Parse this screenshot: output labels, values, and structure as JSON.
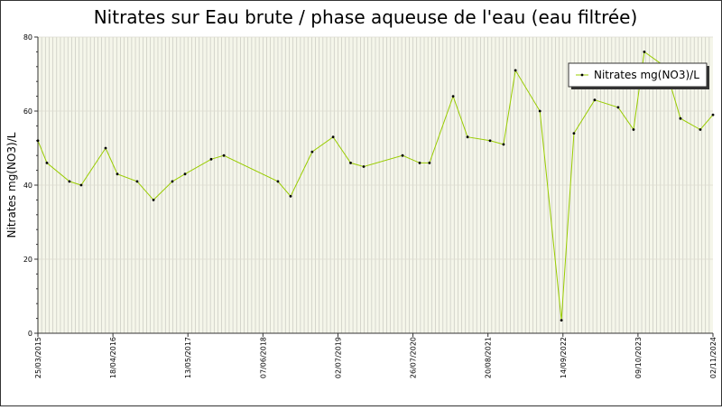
{
  "chart_data": {
    "type": "line",
    "title": "Nitrates sur Eau brute / phase aqueuse de l'eau (eau filtrée)",
    "y_label": "Nitrates mg(NO3)/L",
    "x": [
      "25/03/2015",
      "11/05/2015",
      "05/09/2015",
      "05/11/2015",
      "11/03/2016",
      "11/05/2016",
      "22/08/2016",
      "15/11/2016",
      "21/02/2017",
      "28/04/2017",
      "11/09/2017",
      "16/11/2017",
      "24/08/2018",
      "29/10/2018",
      "18/02/2019",
      "07/06/2019",
      "06/09/2019",
      "13/11/2019",
      "02/06/2020",
      "30/08/2020",
      "20/10/2020",
      "20/02/2021",
      "06/05/2021",
      "31/08/2021",
      "09/11/2021",
      "10/01/2022",
      "17/05/2022",
      "06/09/2022",
      "10/11/2022",
      "26/02/2023",
      "28/06/2023",
      "16/09/2023",
      "11/11/2023",
      "27/02/2024",
      "17/05/2024",
      "28/08/2024",
      "02/11/2024"
    ],
    "series": [
      {
        "name": "Nitrates mg(NO3)/L",
        "color": "#99cc00",
        "values": [
          52,
          46,
          41,
          40,
          50,
          43,
          41,
          36,
          41,
          43,
          47,
          48,
          41,
          37,
          49,
          53,
          46,
          45,
          48,
          46,
          46,
          64,
          53,
          52,
          51,
          71,
          60,
          3.5,
          54,
          63,
          61,
          55,
          76,
          72,
          58,
          55,
          59
        ]
      }
    ],
    "xlim": [
      "25/03/2015",
      "02/11/2024"
    ],
    "xticks": [
      "25/03/2015",
      "18/04/2016",
      "13/05/2017",
      "07/06/2018",
      "02/07/2019",
      "26/07/2020",
      "20/08/2021",
      "14/09/2022",
      "09/10/2023",
      "02/11/2024"
    ],
    "ylim": [
      0,
      80
    ],
    "yticks": [
      0,
      20,
      40,
      60,
      80
    ],
    "grid": true,
    "legend": "upper right"
  }
}
